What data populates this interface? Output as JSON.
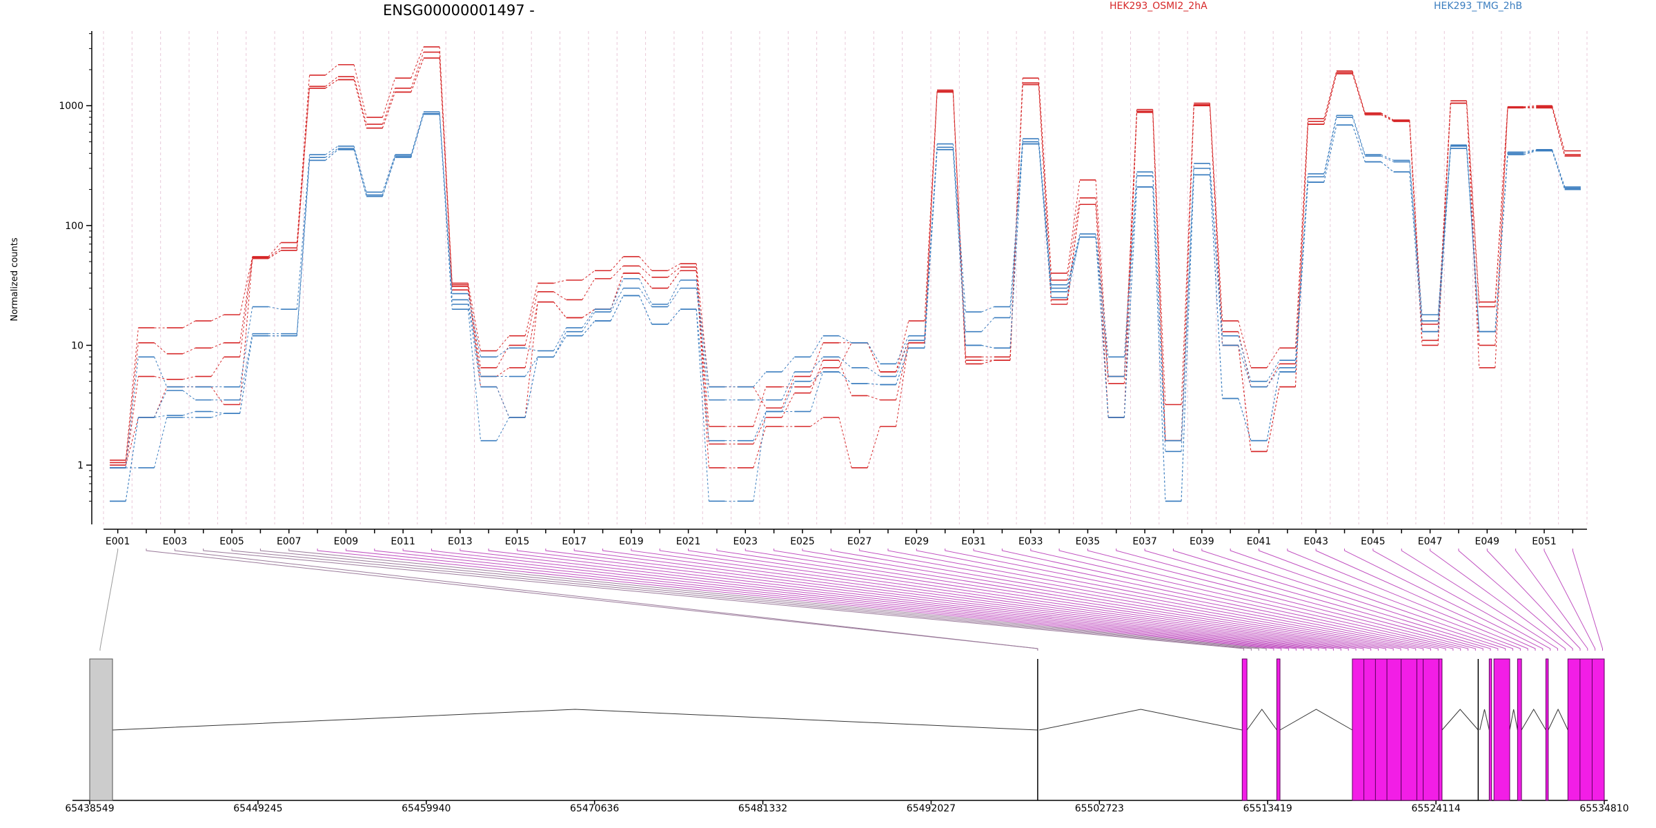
{
  "chart_data": {
    "type": "line",
    "title": "ENSG00000001497 -",
    "ylabel": "Normalized counts",
    "y_scale": "log",
    "ylim": [
      0.32,
      4200
    ],
    "y_ticks": [
      1,
      10,
      100,
      1000
    ],
    "y_tick_labels": [
      "1",
      "10",
      "100",
      "1000"
    ],
    "exons": [
      "E001",
      "E002",
      "E003",
      "E004",
      "E005",
      "E006",
      "E007",
      "E008",
      "E009",
      "E010",
      "E011",
      "E012",
      "E013",
      "E014",
      "E015",
      "E016",
      "E017",
      "E018",
      "E019",
      "E020",
      "E021",
      "E022",
      "E023",
      "E024",
      "E025",
      "E026",
      "E027",
      "E028",
      "E029",
      "E030",
      "E031",
      "E032",
      "E033",
      "E034",
      "E035",
      "E036",
      "E037",
      "E038",
      "E039",
      "E040",
      "E041",
      "E042",
      "E043",
      "E044",
      "E045",
      "E046",
      "E047",
      "E048",
      "E049",
      "E050",
      "E051",
      "E052"
    ],
    "exon_tick_labels": [
      "E001",
      "E003",
      "E005",
      "E007",
      "E009",
      "E011",
      "E013",
      "E015",
      "E017",
      "E019",
      "E021",
      "E023",
      "E025",
      "E027",
      "E029",
      "E031",
      "E033",
      "E035",
      "E037",
      "E039",
      "E041",
      "E043",
      "E045",
      "E047",
      "E049",
      "E051"
    ],
    "legend": [
      {
        "name": "HEK293_OSMI2_2hA",
        "color": "#d62728"
      },
      {
        "name": "HEK293_TMG_2hB",
        "color": "#3a7dbf"
      }
    ],
    "series": [
      {
        "group": "HEK293_OSMI2_2hA",
        "color": "#d62728",
        "values": [
          1.1,
          14,
          14,
          16,
          18,
          55,
          72,
          1800,
          2200,
          800,
          1700,
          3100,
          33,
          9,
          12,
          33,
          35,
          42,
          55,
          42,
          48,
          4.5,
          4.5,
          3,
          5.5,
          10.5,
          10.5,
          6,
          16,
          1350,
          8,
          8,
          1700,
          40,
          240,
          5.5,
          930,
          3.2,
          1050,
          16,
          6.5,
          9.5,
          780,
          1950,
          870,
          760,
          15,
          1100,
          23,
          980,
          1000,
          420
        ]
      },
      {
        "group": "HEK293_OSMI2_2hA",
        "color": "#d62728",
        "values": [
          1.05,
          10.5,
          8.5,
          9.5,
          10.5,
          54,
          65,
          1450,
          1750,
          700,
          1400,
          2800,
          31,
          6.5,
          10,
          28,
          24,
          36,
          46,
          37,
          45,
          2.1,
          2.1,
          4.5,
          4.5,
          6.5,
          10.5,
          6,
          11,
          1320,
          7.5,
          7.5,
          1550,
          35,
          170,
          4.8,
          900,
          1.6,
          1020,
          13,
          4.5,
          7,
          740,
          1900,
          860,
          750,
          13,
          1050,
          21,
          970,
          980,
          390
        ]
      },
      {
        "group": "HEK293_OSMI2_2hA",
        "color": "#d62728",
        "values": [
          0.95,
          5.5,
          5.2,
          5.5,
          8,
          53,
          62,
          1400,
          1650,
          650,
          1300,
          2500,
          29,
          5.5,
          6.5,
          23,
          17,
          20,
          40,
          30,
          42,
          1.5,
          1.5,
          2.5,
          4,
          7.5,
          3.8,
          3.5,
          10.5,
          1300,
          7,
          7.5,
          1500,
          24,
          150,
          2.5,
          880,
          1.6,
          1000,
          10,
          1.3,
          4.5,
          700,
          1850,
          840,
          740,
          11,
          1050,
          10,
          960,
          960,
          380
        ]
      },
      {
        "group": "HEK293_OSMI2_2hA",
        "color": "#d62728",
        "values": [
          1.0,
          2.5,
          4.5,
          4.5,
          3.2,
          53,
          62,
          1400,
          1650,
          650,
          1300,
          2500,
          32,
          4.5,
          2.5,
          23,
          17,
          20,
          40,
          30,
          42,
          0.95,
          0.95,
          2.1,
          2.1,
          2.5,
          0.95,
          2.1,
          10.5,
          1300,
          7,
          7.5,
          1500,
          22,
          150,
          2.5,
          880,
          1.6,
          1000,
          10,
          1.3,
          4.5,
          700,
          1850,
          840,
          740,
          10,
          1050,
          6.5,
          960,
          960,
          380
        ]
      },
      {
        "group": "HEK293_TMG_2hB",
        "color": "#3a7dbf",
        "values": [
          0.95,
          8,
          4.5,
          4.5,
          4.5,
          21,
          20,
          390,
          460,
          190,
          390,
          890,
          27,
          8,
          9.5,
          9,
          14,
          20,
          36,
          22,
          35,
          4.5,
          4.5,
          6,
          8,
          12,
          10.5,
          7,
          12,
          480,
          19,
          21,
          530,
          32,
          85,
          8,
          280,
          1.6,
          330,
          12,
          5,
          7.5,
          270,
          830,
          390,
          350,
          18,
          470,
          13,
          410,
          430,
          210
        ]
      },
      {
        "group": "HEK293_TMG_2hB",
        "color": "#3a7dbf",
        "values": [
          0.5,
          2.5,
          4.2,
          3.5,
          3.5,
          12.5,
          12.5,
          370,
          440,
          180,
          380,
          860,
          24,
          5.5,
          5.5,
          8,
          13,
          19,
          30,
          21,
          30,
          3.5,
          3.5,
          3.5,
          6,
          8,
          6.5,
          5.5,
          11,
          450,
          13,
          17,
          500,
          30,
          80,
          5.5,
          260,
          1.3,
          300,
          10,
          4.5,
          6.5,
          255,
          800,
          380,
          340,
          16,
          460,
          13,
          400,
          425,
          205
        ]
      },
      {
        "group": "HEK293_TMG_2hB",
        "color": "#3a7dbf",
        "values": [
          0.5,
          2.5,
          2.6,
          2.8,
          2.7,
          12,
          12,
          350,
          430,
          175,
          370,
          850,
          22,
          4.5,
          2.5,
          8,
          12,
          16,
          26,
          15,
          20,
          1.6,
          1.6,
          2.8,
          5,
          6,
          4.8,
          4.7,
          9.5,
          430,
          10,
          9.5,
          480,
          28,
          80,
          2.5,
          210,
          0.5,
          265,
          3.6,
          1.6,
          6,
          230,
          690,
          340,
          280,
          13,
          440,
          13,
          390,
          420,
          200
        ]
      },
      {
        "group": "HEK293_TMG_2hB",
        "color": "#3a7dbf",
        "values": [
          0.95,
          0.95,
          2.5,
          2.5,
          2.7,
          12,
          12,
          350,
          430,
          175,
          370,
          850,
          20,
          1.6,
          2.5,
          8,
          12,
          16,
          26,
          15,
          20,
          0.5,
          0.5,
          2.8,
          2.8,
          6,
          4.8,
          4.7,
          9.5,
          430,
          10,
          9.5,
          480,
          25,
          80,
          2.5,
          210,
          0.5,
          265,
          3.6,
          1.6,
          6,
          230,
          690,
          340,
          280,
          13,
          440,
          13,
          390,
          420,
          200
        ]
      }
    ],
    "gene_model": {
      "x_tick_labels": [
        "65438549",
        "65449245",
        "65459940",
        "65470636",
        "65481332",
        "65492027",
        "65502723",
        "65513419",
        "65524114",
        "65534810"
      ],
      "range": [
        65438549,
        65534810
      ],
      "exon_blocks": [
        {
          "start": 65438549,
          "end": 65440000,
          "type": "untested"
        },
        {
          "start": 65498800,
          "end": 65498900,
          "type": "line"
        },
        {
          "start": 65511800,
          "end": 65512100,
          "type": "tested"
        },
        {
          "start": 65514000,
          "end": 65514200,
          "type": "tested"
        },
        {
          "start": 65518800,
          "end": 65521000,
          "type": "tested"
        },
        {
          "start": 65521000,
          "end": 65521900,
          "type": "tested"
        },
        {
          "start": 65521900,
          "end": 65522900,
          "type": "tested"
        },
        {
          "start": 65522900,
          "end": 65523300,
          "type": "tested"
        },
        {
          "start": 65523300,
          "end": 65524300,
          "type": "tested"
        },
        {
          "start": 65524300,
          "end": 65524500,
          "type": "tested"
        },
        {
          "start": 65526800,
          "end": 65526900,
          "type": "line"
        },
        {
          "start": 65527500,
          "end": 65527650,
          "type": "tested"
        },
        {
          "start": 65527800,
          "end": 65528800,
          "type": "tested"
        },
        {
          "start": 65529300,
          "end": 65529550,
          "type": "tested"
        },
        {
          "start": 65531100,
          "end": 65531250,
          "type": "tested"
        },
        {
          "start": 65532500,
          "end": 65534810,
          "type": "tested"
        }
      ]
    }
  }
}
